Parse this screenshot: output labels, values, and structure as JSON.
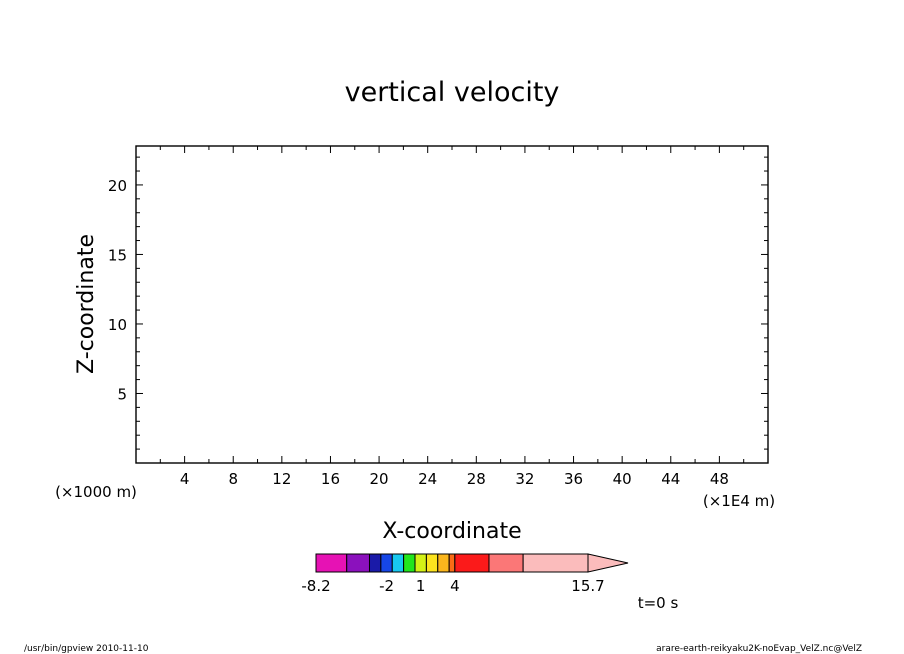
{
  "chart_data": {
    "type": "heatmap",
    "title": "vertical velocity",
    "xlabel": "X-coordinate",
    "ylabel": "Z-coordinate",
    "x_units": "(×1E4 m)",
    "y_units": "(×1000 m)",
    "xlim": [
      0,
      52
    ],
    "ylim": [
      0,
      22.8
    ],
    "x_ticks": [
      4,
      8,
      12,
      16,
      20,
      24,
      28,
      32,
      36,
      40,
      44,
      48
    ],
    "y_ticks": [
      5,
      10,
      15,
      20
    ],
    "data": [],
    "colorbar": {
      "levels": [
        -8.2,
        -5.5,
        -3.5,
        -2.5,
        -1.5,
        -0.5,
        0.5,
        1.5,
        2.5,
        3.5,
        4,
        7,
        10,
        15.7
      ],
      "labels": [
        "-8.2",
        "-2",
        "1",
        "4",
        "15.7"
      ],
      "label_values": [
        -8.2,
        -2,
        1,
        4,
        15.7
      ],
      "colors": [
        "#e612b4",
        "#8b11bd",
        "#1a1aa8",
        "#1646e6",
        "#18c8f0",
        "#22e61d",
        "#d4f216",
        "#fce31e",
        "#fbb61d",
        "#fb6b16",
        "#fb1a1a",
        "#fb7777",
        "#fbbcbc"
      ]
    },
    "time_label": "t=0 s"
  },
  "footer": {
    "left": "/usr/bin/gpview  2010-11-10",
    "right": "arare-earth-reikyaku2K-noEvap_VelZ.nc@VelZ"
  }
}
